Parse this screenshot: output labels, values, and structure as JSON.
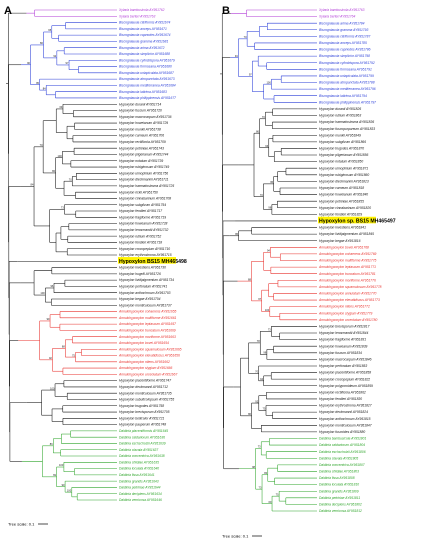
{
  "colors": {
    "purple": "#b03ad6",
    "blue": "#2a3ed8",
    "black": "#111111",
    "red": "#e8302c",
    "green": "#2fa52b",
    "highlight": "#fff200"
  },
  "panels": [
    {
      "letter": "A",
      "scale_label": "Tree scale: 0.1",
      "highlight": "Hypoxylon BS15 MH465498",
      "groups": [
        {
          "color": "purple",
          "leaves": [
            "Xylaria bambusicola AY951762",
            "Xylaria berteri AY951763"
          ]
        },
        {
          "color": "blue",
          "leaves": [
            "Biscogniauxia citriformis AY951674",
            "Biscogniauxia anceps AY951671",
            "Biscogniauxia capnodes AY951674",
            "Biscogniauxia gramma AY951681",
            "Biscogniauxia arima AY951672",
            "Biscogniauxia simplicior AY951688",
            "Biscogniauxia cylindrispora AY951679",
            "Biscogniauxia formosana AY951680",
            "Biscogniauxia uniapiculata AY951687",
            "Biscogniauxia atropunctata AY951673",
            "Biscogniauxia mediterranea AY951684",
            "Biscogniauxia latirima AY951683",
            "Biscogniauxia philippinensis AY951677"
          ]
        },
        {
          "color": "black",
          "leaves": [
            "Hypoxylon duranii AY951714",
            "Hypoxylon fuscum AY951720",
            "Hypoxylon macrocarpum AY951736",
            "Hypoxylon howeianum AY951729",
            "Hypoxylon munkii AY951738",
            "Hypoxylon carneum AY951706",
            "Hypoxylon rectillicola AY951709",
            "Hypoxylon petriniae AY951743",
            "Hypoxylon pilgerianum AY951744",
            "Hypoxylon notatum AY951739",
            "Hypoxylon rubiginosum AY951749",
            "Hypoxylon ulmophilum AY951756",
            "Hypoxylon dieckmannii AY951711",
            "Hypoxylon haematostroma AY951725",
            "Hypoxylon rickii AY951750",
            "Hypoxylon cinnabarinum AY951708",
            "Hypoxylon subgilvum AY951754",
            "Hypoxylon fendleri AY951717",
            "Hypoxylon fragiforme AY951719",
            "Hypoxylon howeanum AY951728",
            "Hypoxylon lenormandii AY951732",
            "Hypoxylon rutilum AY951752",
            "Hypoxylon fendleri AY951718",
            "Hypoxylon crocopeplum AY951710",
            "Hypoxylon erythrostroma AY951715"
          ]
        },
        {
          "color": "highlight",
          "leaves": [
            "Hypoxylon BS15 MH465498"
          ]
        },
        {
          "color": "black",
          "leaves": [
            "Hypoxylon investiens AY951730",
            "Hypoxylon hugelli AY951726",
            "Hypoxylon lividipigmentum AY951734",
            "Hypoxylon perforatum AY951741",
            "Hypoxylon anthochroum AY951703",
            "Hypoxylon begae AY951704",
            "Hypoxylon monticulosum AY951737"
          ]
        },
        {
          "color": "red",
          "leaves": [
            "Annulohypoxylon cohaerens AY951655",
            "Annulohypoxylon multiforme AY951661",
            "Annulohypoxylon leptascum AY951657",
            "Annulohypoxylon truncatum AY951669",
            "Annulohypoxylon moriforme AY951663",
            "Annulohypoxylon bovei AY951654",
            "Annulohypoxylon squamulosum AY951665",
            "Annulohypoxylon elevatidiscus AY951656",
            "Annulohypoxylon nitens AY951662",
            "Annulohypoxylon stygium AY951666",
            "Annulohypoxylon urceolatum AY951667"
          ]
        },
        {
          "color": "black",
          "leaves": [
            "Hypoxylon placentiforme AY951747",
            "Hypoxylon deckmannii AY951712",
            "Hypoxylon monticulosum AY951735",
            "Hypoxylon subuticolopsum AY951755",
            "Hypoxylon trugodes AY951758",
            "Hypoxylon brevisporum AY951705",
            "Hypoxylon bellicolor AY951721",
            "Hypoxylon pauperum AY951748"
          ]
        },
        {
          "color": "green",
          "leaves": [
            "Daldinia placentiformis AY951645",
            "Daldinia caldariorum AY951636",
            "Daldinia eschscholzii AY951639",
            "Daldinia clavata AY951637",
            "Daldinia concentrica AY951638",
            "Daldinia childiae AY951635",
            "Daldinia loculata AY951640",
            "Daldinia fissa AY951641",
            "Daldinia grandis AY951643",
            "Daldinia petriniae AY951644",
            "Daldinia decipiens AY951634",
            "Daldinia vernicosa AY951646"
          ]
        }
      ]
    },
    {
      "letter": "B",
      "scale_label": "Tree scale: 0.1",
      "highlight": "Hypoxylon sp. BS15 MH465497",
      "groups": [
        {
          "color": "purple",
          "leaves": [
            "Xylaria bambusicola AY951763",
            "Xylaria berteri AY951764"
          ]
        },
        {
          "color": "blue",
          "leaves": [
            "Biscogniauxia arima AY951784",
            "Biscogniauxia gramma AY951793",
            "Biscogniauxia citriformis AY951787",
            "Biscogniauxia anceps AY951785",
            "Biscogniauxia capnodes AY951786",
            "Biscogniauxia simplicior AY951798",
            "Biscogniauxia cylindrispora AY951792",
            "Biscogniauxia formosana AY951791",
            "Biscogniauxia uniapiculata AY951799",
            "Biscogniauxia atropunctata AY951788",
            "Biscogniauxia mediterranea AY951796",
            "Biscogniauxia latirima AY951794",
            "Biscogniauxia philippinensis AY951797"
          ]
        },
        {
          "color": "black",
          "leaves": [
            "Hypoxylon duranii AY951826",
            "Hypoxylon rutilum AY951863",
            "Hypoxylon haematostroma AY951836",
            "Hypoxylon fuscopurpureum AY951833",
            "Hypoxylon munkii AY951849",
            "Hypoxylon subgilvum AY951866",
            "Hypoxylon trugodes AY951870",
            "Hypoxylon pilgerianum AY951856",
            "Hypoxylon notatum AY951850",
            "Hypoxylon ulmophilum AY951871",
            "Hypoxylon rubiginosum AY951860",
            "Hypoxylon dieckmannii AY951823",
            "Hypoxylon carneum AY951818",
            "Hypoxylon howeianum AY951840",
            "Hypoxylon petriniae AY951855",
            "Hypoxylon cinnabarinum AY951820",
            "Hypoxylon fendleri AY951829"
          ]
        },
        {
          "color": "highlight",
          "leaves": [
            "Hypoxylon sp. BS15 MH465497"
          ]
        },
        {
          "color": "black",
          "leaves": [
            "Hypoxylon investiens AY951841",
            "Hypoxylon lividipigmentum AY951845",
            "Hypoxylon begae AY951816"
          ]
        },
        {
          "color": "red",
          "leaves": [
            "Annulohypoxylon bovei AY951768",
            "Annulohypoxylon cohaerens AY951769",
            "Annulohypoxylon multiforme AY951775",
            "Annulohypoxylon leptascum AY951771",
            "Annulohypoxylon truncatum AY951781",
            "Annulohypoxylon moriforme AY951776",
            "Annulohypoxylon squamulosum AY951778",
            "Annulohypoxylon annulatum AY951770",
            "Annulohypoxylon elevatidiscus AY951773",
            "Annulohypoxylon nitens AY951772",
            "Annulohypoxylon stygium AY951779",
            "Annulohypoxylon urceolatum AY951780"
          ]
        },
        {
          "color": "black",
          "leaves": [
            "Hypoxylon brevisporum AY951817",
            "Hypoxylon lenormandii AY951844",
            "Hypoxylon fragiforme AY951831",
            "Hypoxylon howeanum AY951839",
            "Hypoxylon fuscum AY951834",
            "Hypoxylon macrocarpum AY951846",
            "Hypoxylon perforatum AY951853",
            "Hypoxylon placentiforme AY951858",
            "Hypoxylon crocopeplum AY951822",
            "Hypoxylon polyporoideum AY951859",
            "Hypoxylon rectillicola AY951862",
            "Hypoxylon fendleri AY951830",
            "Hypoxylon erythrostroma AY951827",
            "Hypoxylon deckmannii AY951824",
            "Hypoxylon anthochroum AY951815",
            "Hypoxylon monticulosum AY951847",
            "Hypoxylon fuscoides AY951880"
          ]
        },
        {
          "color": "green",
          "leaves": [
            "Daldinia bambusicola AY951801",
            "Daldinia caldariorum AY951804",
            "Daldinia eschscholzii AY951806",
            "Daldinia clavata AY951805",
            "Daldinia concentrica AY951807",
            "Daldinia childiae AY951803",
            "Daldinia fissa AY951808",
            "Daldinia loculata AY951810",
            "Daldinia grandis AY951809",
            "Daldinia petriniae AY951811",
            "Daldinia decipiens AY951802",
            "Daldinia vernicosa AY951812"
          ]
        }
      ]
    }
  ]
}
